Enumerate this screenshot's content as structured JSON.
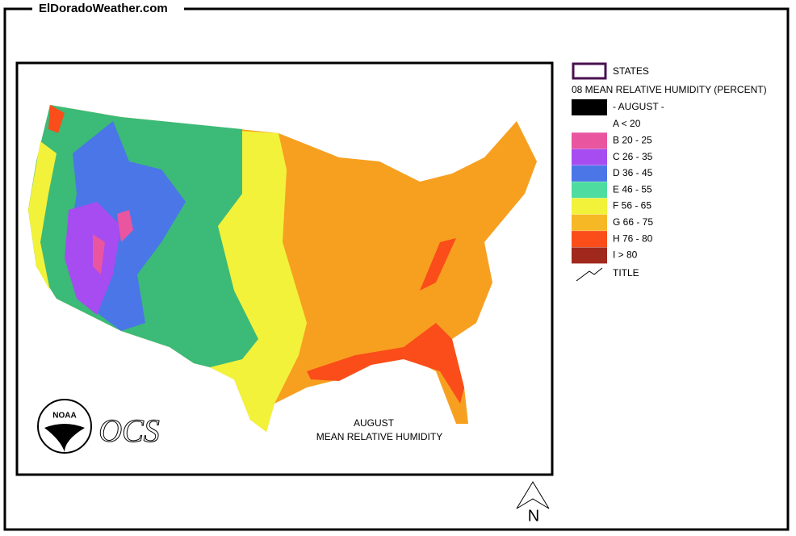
{
  "header": {
    "site": "ElDoradoWeather.com"
  },
  "map": {
    "title_line1": "AUGUST",
    "title_line2": "MEAN  RELATIVE HUMIDITY",
    "logo_noaa": "NOAA",
    "logo_ocs": "OCS",
    "compass": "N"
  },
  "legend": {
    "states": "STATES",
    "heading": "08 MEAN RELATIVE HUMIDITY (PERCENT)",
    "month": {
      "label": "- AUGUST -",
      "color": "#000000"
    },
    "classes": [
      {
        "label": "A < 20"
      },
      {
        "label": "B 20 - 25",
        "color": "#e9559f"
      },
      {
        "label": "C 26 - 35",
        "color": "#a64cf0"
      },
      {
        "label": "D 36 - 45",
        "color": "#4a76e8"
      },
      {
        "label": "E 46 - 55",
        "color": "#4fdca0"
      },
      {
        "label": "F 56 - 65",
        "color": "#f2f23a"
      },
      {
        "label": "G 66 - 75",
        "color": "#f7b825"
      },
      {
        "label": "H 76 - 80",
        "color": "#fa4d1a"
      },
      {
        "label": "I > 80",
        "color": "#a0281c"
      }
    ],
    "title_item": "TITLE"
  }
}
